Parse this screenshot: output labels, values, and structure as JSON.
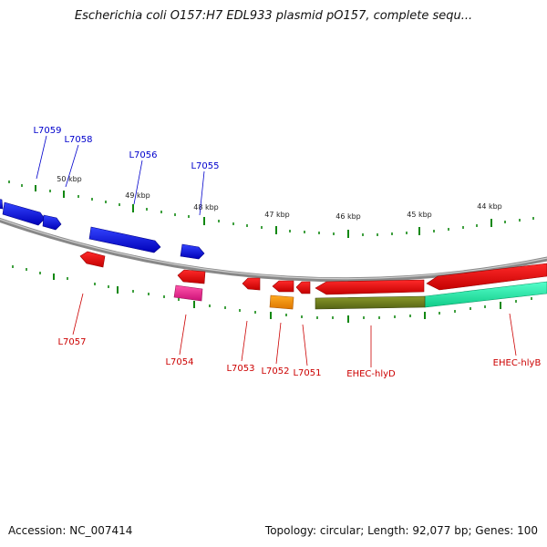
{
  "title": "Escherichia coli O157:H7 EDL933 plasmid pO157, complete sequ...",
  "footer": {
    "accession": "Accession: NC_007414",
    "stats": "Topology: circular; Length: 92,077 bp; Genes: 100"
  },
  "colors": {
    "forward_gene": "#0000ee",
    "reverse_gene": "#ee0000",
    "magenta_gene": "#ee2288",
    "orange_gene": "#ff8800",
    "olive_feature": "#6b7a1a",
    "teal_feature": "#22eeaa",
    "backbone": "#888888",
    "tick": "#118811",
    "forward_label": "#0000cc",
    "reverse_label": "#cc0000"
  },
  "scale_labels": [
    "50 kbp",
    "49 kbp",
    "48 kbp",
    "47 kbp",
    "46 kbp",
    "45 kbp",
    "44 kbp"
  ],
  "forward_labels": [
    "L7059",
    "L7058",
    "L7056",
    "L7055"
  ],
  "reverse_labels": [
    "L7057",
    "L7054",
    "L7053",
    "L7052",
    "L7051",
    "EHEC-hlyD",
    "EHEC-hlyB"
  ]
}
